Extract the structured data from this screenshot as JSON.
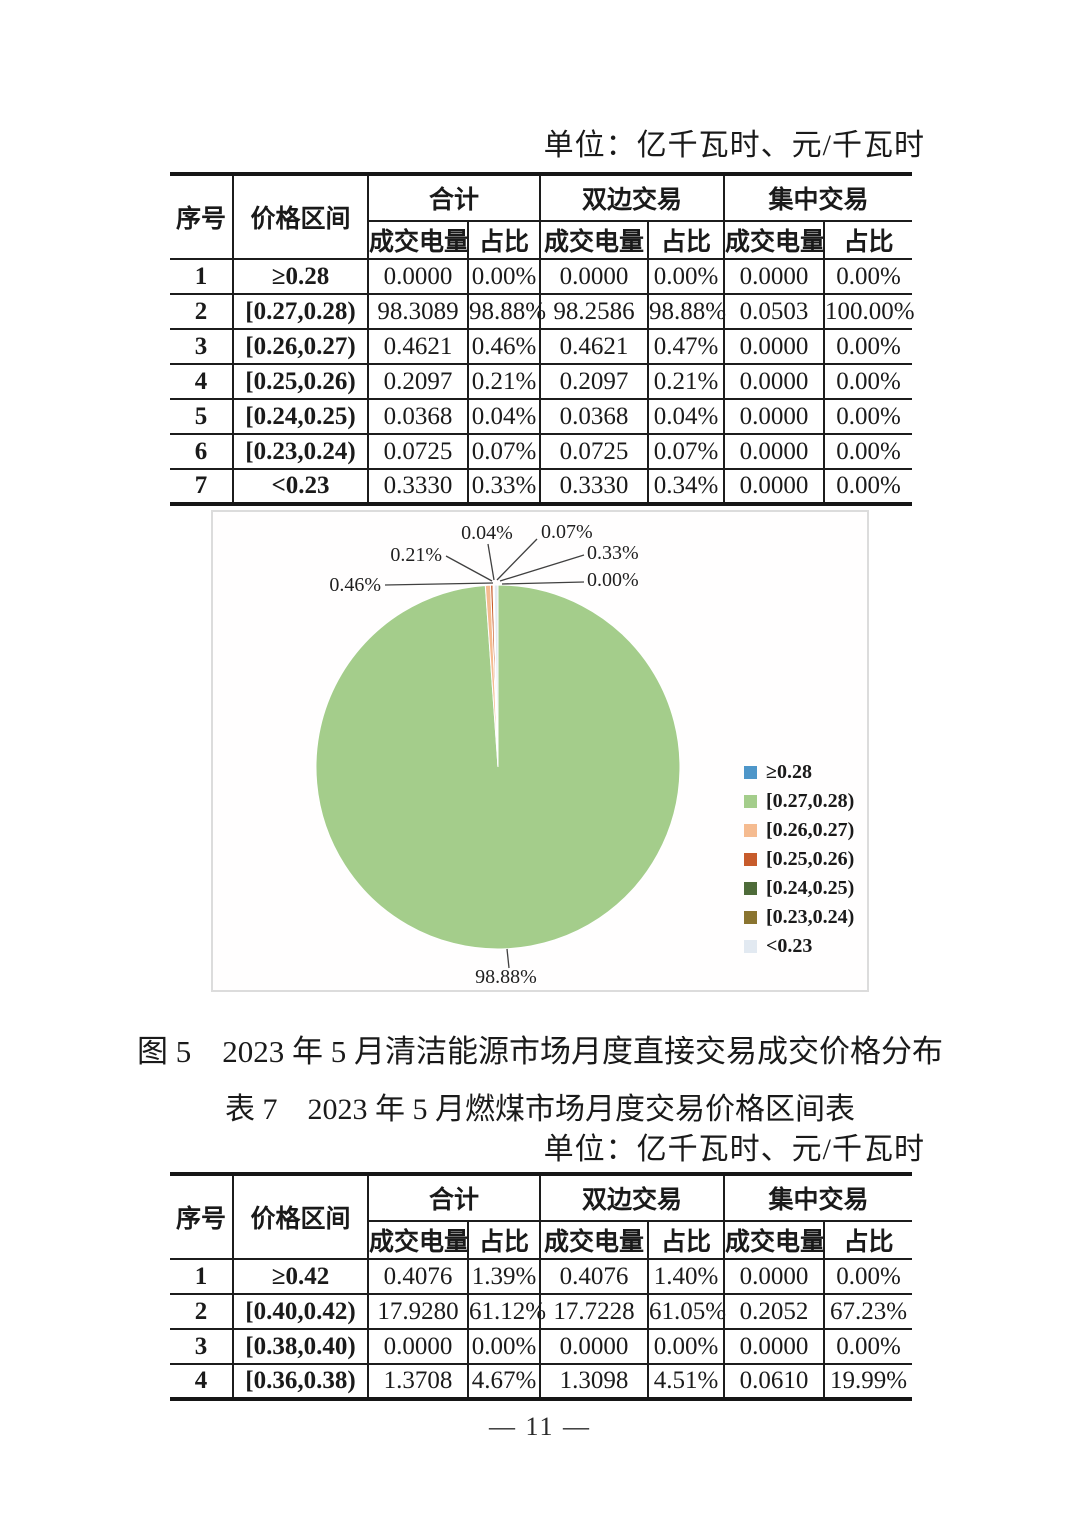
{
  "unit_note": "单位：亿千瓦时、元/千瓦时",
  "table_headers": {
    "col_seq": "序号",
    "col_range": "价格区间",
    "group_total": "合计",
    "group_bilateral": "双边交易",
    "group_centralized": "集中交易",
    "col_volume": "成交电量",
    "col_share": "占比"
  },
  "table1": {
    "rows": [
      [
        "1",
        "≥0.28",
        "0.0000",
        "0.00%",
        "0.0000",
        "0.00%",
        "0.0000",
        "0.00%"
      ],
      [
        "2",
        "[0.27,0.28)",
        "98.3089",
        "98.88%",
        "98.2586",
        "98.88%",
        "0.0503",
        "100.00%"
      ],
      [
        "3",
        "[0.26,0.27)",
        "0.4621",
        "0.46%",
        "0.4621",
        "0.47%",
        "0.0000",
        "0.00%"
      ],
      [
        "4",
        "[0.25,0.26)",
        "0.2097",
        "0.21%",
        "0.2097",
        "0.21%",
        "0.0000",
        "0.00%"
      ],
      [
        "5",
        "[0.24,0.25)",
        "0.0368",
        "0.04%",
        "0.0368",
        "0.04%",
        "0.0000",
        "0.00%"
      ],
      [
        "6",
        "[0.23,0.24)",
        "0.0725",
        "0.07%",
        "0.0725",
        "0.07%",
        "0.0000",
        "0.00%"
      ],
      [
        "7",
        "<0.23",
        "0.3330",
        "0.33%",
        "0.3330",
        "0.34%",
        "0.0000",
        "0.00%"
      ]
    ]
  },
  "table2": {
    "rows": [
      [
        "1",
        "≥0.42",
        "0.4076",
        "1.39%",
        "0.4076",
        "1.40%",
        "0.0000",
        "0.00%"
      ],
      [
        "2",
        "[0.40,0.42)",
        "17.9280",
        "61.12%",
        "17.7228",
        "61.05%",
        "0.2052",
        "67.23%"
      ],
      [
        "3",
        "[0.38,0.40)",
        "0.0000",
        "0.00%",
        "0.0000",
        "0.00%",
        "0.0000",
        "0.00%"
      ],
      [
        "4",
        "[0.36,0.38)",
        "1.3708",
        "4.67%",
        "1.3098",
        "4.51%",
        "0.0610",
        "19.99%"
      ]
    ]
  },
  "figure_caption": "图 5　2023 年 5 月清洁能源市场月度直接交易成交价格分布",
  "table7_caption": "表 7　2023 年 5 月燃煤市场月度交易价格区间表",
  "page_number": "— 11 —",
  "chart_data": {
    "type": "pie",
    "title": "",
    "categories": [
      "≥0.28",
      "[0.27,0.28)",
      "[0.26,0.27)",
      "[0.25,0.26)",
      "[0.24,0.25)",
      "[0.23,0.24)",
      "<0.23"
    ],
    "values": [
      0.0,
      98.88,
      0.46,
      0.21,
      0.04,
      0.07,
      0.33
    ],
    "pct_labels": [
      "0.00%",
      "98.88%",
      "0.46%",
      "0.21%",
      "0.04%",
      "0.07%",
      "0.33%"
    ],
    "colors": [
      "#4E96C9",
      "#A4CD8B",
      "#F5BB90",
      "#C75B2B",
      "#4E6B39",
      "#8A7430",
      "#E2E9F1"
    ],
    "legend_position": "right",
    "start_angle_deg": 0,
    "direction": "clockwise"
  }
}
